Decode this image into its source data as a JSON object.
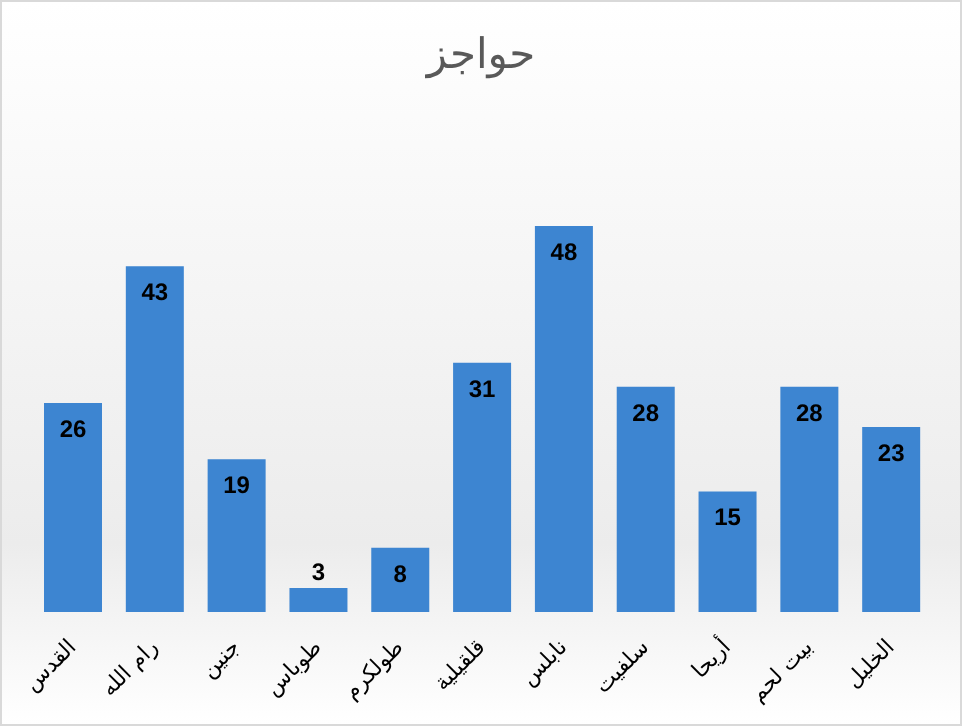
{
  "chart_data": {
    "type": "bar",
    "title": "حواجز",
    "categories": [
      "القدس",
      "رام الله",
      "جنين",
      "طوباس",
      "طولكرم",
      "قلقيلية",
      "نابلس",
      "سلفيت",
      "أريحا",
      "بيت لحم",
      "الخليل"
    ],
    "values": [
      26,
      43,
      19,
      3,
      8,
      31,
      48,
      28,
      15,
      28,
      23
    ],
    "color": "#3d85d1",
    "data_labels": true,
    "ylim": [
      0,
      48
    ],
    "tick_labels": "x",
    "grid": false,
    "legend": false
  }
}
